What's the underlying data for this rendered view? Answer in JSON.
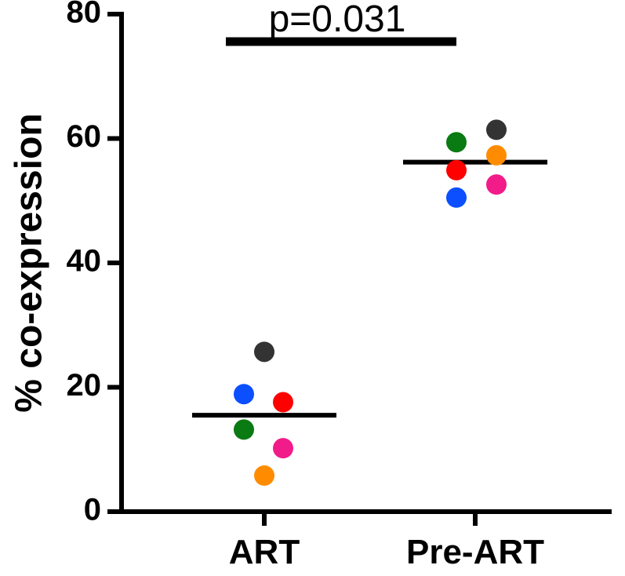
{
  "chart_data": {
    "type": "scatter",
    "ylabel": "% co-expression",
    "xlabel": "",
    "categories": [
      "ART",
      "Pre-ART"
    ],
    "ylim": [
      0,
      80
    ],
    "yticks": [
      0,
      20,
      40,
      60,
      80
    ],
    "colors": {
      "black": "#333333",
      "blue": "#0b4fff",
      "red": "#ff0000",
      "green": "#0a7a12",
      "pink": "#f21b8a",
      "orange": "#ff8c00"
    },
    "groups": [
      {
        "name": "ART",
        "median": 15.5,
        "points": [
          {
            "color": "black",
            "y": 25.7
          },
          {
            "color": "blue",
            "y": 18.9
          },
          {
            "color": "red",
            "y": 17.6
          },
          {
            "color": "green",
            "y": 13.2
          },
          {
            "color": "pink",
            "y": 10.2
          },
          {
            "color": "orange",
            "y": 5.8
          }
        ]
      },
      {
        "name": "Pre-ART",
        "median": 56.2,
        "points": [
          {
            "color": "black",
            "y": 61.4
          },
          {
            "color": "green",
            "y": 59.4
          },
          {
            "color": "orange",
            "y": 57.3
          },
          {
            "color": "red",
            "y": 54.9
          },
          {
            "color": "pink",
            "y": 52.6
          },
          {
            "color": "blue",
            "y": 50.5
          }
        ]
      }
    ],
    "annotation": {
      "text": "p=0.031"
    }
  }
}
